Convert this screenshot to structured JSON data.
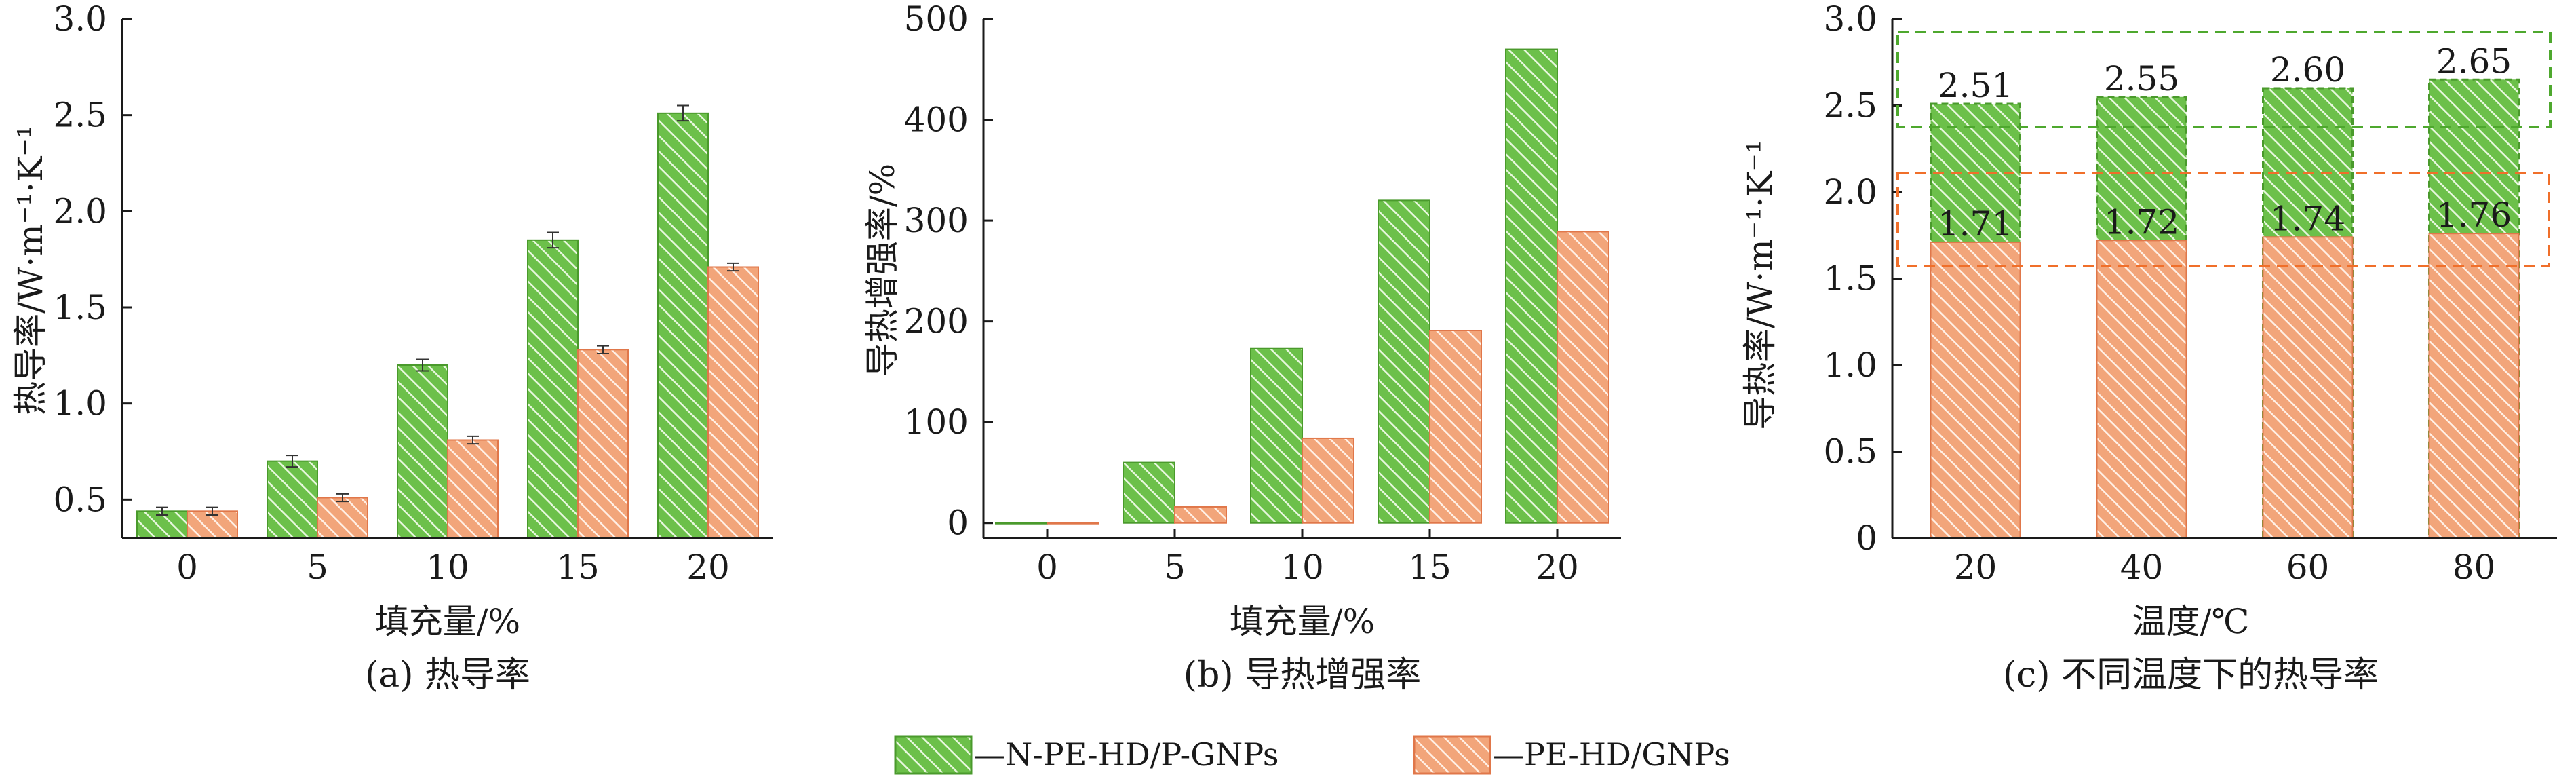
{
  "colors": {
    "green_fill": "#6cc04a",
    "green_edge": "#4a9a2c",
    "orange_fill": "#f2a57a",
    "orange_edge": "#e0774a",
    "green_box": "#4ea82e",
    "orange_box": "#f06f2a",
    "axis": "#1a1a1a"
  },
  "legend": {
    "series_a": "—N-PE-HD/P-GNPs",
    "series_b": "—PE-HD/GNPs"
  },
  "chart_data": [
    {
      "type": "bar",
      "caption": "(a) 热导率",
      "xlabel": "填充量/%",
      "ylabel": "热导率/W·m⁻¹·K⁻¹",
      "ylim": [
        0.3,
        3.0
      ],
      "yticks": [
        "0.5",
        "1.0",
        "1.5",
        "2.0",
        "2.5",
        "3.0"
      ],
      "categories": [
        "0",
        "5",
        "10",
        "15",
        "20"
      ],
      "error_bars": true,
      "series": [
        {
          "name": "N-PE-HD/P-GNPs",
          "values": [
            0.44,
            0.7,
            1.2,
            1.85,
            2.51
          ],
          "errors": [
            0.02,
            0.03,
            0.03,
            0.04,
            0.04
          ]
        },
        {
          "name": "PE-HD/GNPs",
          "values": [
            0.44,
            0.51,
            0.81,
            1.28,
            1.71
          ],
          "errors": [
            0.02,
            0.02,
            0.02,
            0.02,
            0.02
          ]
        }
      ]
    },
    {
      "type": "bar",
      "caption": "(b) 导热增强率",
      "xlabel": "填充量/%",
      "ylabel": "导热增强率/%",
      "ylim": [
        -15,
        500
      ],
      "yticks": [
        "0",
        "100",
        "200",
        "300",
        "400",
        "500"
      ],
      "categories": [
        "0",
        "5",
        "10",
        "15",
        "20"
      ],
      "series": [
        {
          "name": "N-PE-HD/P-GNPs",
          "values": [
            0,
            60,
            173,
            320,
            470
          ]
        },
        {
          "name": "PE-HD/GNPs",
          "values": [
            0,
            16,
            84,
            191,
            289
          ]
        }
      ]
    },
    {
      "type": "bar",
      "caption": "(c) 不同温度下的热导率",
      "xlabel": "温度/℃",
      "ylabel": "导热率/W·m⁻¹·K⁻¹",
      "ylim": [
        0,
        3.0
      ],
      "yticks": [
        "0",
        "0.5",
        "1.0",
        "1.5",
        "2.0",
        "2.5",
        "3.0"
      ],
      "categories": [
        "20",
        "40",
        "60",
        "80"
      ],
      "overlap": true,
      "series": [
        {
          "name": "N-PE-HD/P-GNPs",
          "values": [
            2.51,
            2.55,
            2.6,
            2.65
          ],
          "labels": [
            "2.51",
            "2.55",
            "2.60",
            "2.65"
          ]
        },
        {
          "name": "PE-HD/GNPs",
          "values": [
            1.71,
            1.72,
            1.74,
            1.76
          ],
          "labels": [
            "1.71",
            "1.72",
            "1.74",
            "1.76"
          ]
        }
      ]
    }
  ]
}
